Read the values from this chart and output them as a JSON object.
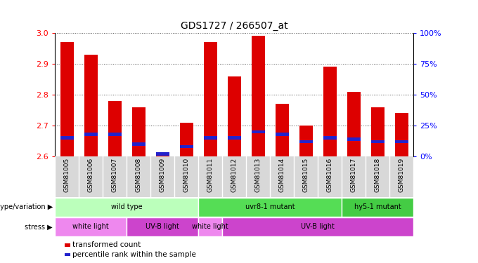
{
  "title": "GDS1727 / 266507_at",
  "samples": [
    "GSM81005",
    "GSM81006",
    "GSM81007",
    "GSM81008",
    "GSM81009",
    "GSM81010",
    "GSM81011",
    "GSM81012",
    "GSM81013",
    "GSM81014",
    "GSM81015",
    "GSM81016",
    "GSM81017",
    "GSM81018",
    "GSM81019"
  ],
  "transformed_count": [
    2.97,
    2.93,
    2.78,
    2.76,
    2.61,
    2.71,
    2.97,
    2.86,
    2.99,
    2.77,
    2.7,
    2.89,
    2.81,
    2.76,
    2.74
  ],
  "percentile_rank": [
    15,
    18,
    18,
    10,
    2,
    8,
    15,
    15,
    20,
    18,
    12,
    15,
    14,
    12,
    12
  ],
  "ylim_left": [
    2.6,
    3.0
  ],
  "ylim_right": [
    0,
    100
  ],
  "yticks_left": [
    2.6,
    2.7,
    2.8,
    2.9,
    3.0
  ],
  "yticks_right": [
    0,
    25,
    50,
    75,
    100
  ],
  "bar_color": "#dd0000",
  "pct_color": "#2222cc",
  "baseline": 2.6,
  "genotype_groups": [
    {
      "label": "wild type",
      "start": 0,
      "end": 6,
      "color": "#bbffbb"
    },
    {
      "label": "uvr8-1 mutant",
      "start": 6,
      "end": 12,
      "color": "#55dd55"
    },
    {
      "label": "hy5-1 mutant",
      "start": 12,
      "end": 15,
      "color": "#44cc44"
    }
  ],
  "stress_groups": [
    {
      "label": "white light",
      "start": 0,
      "end": 3,
      "color": "#ee88ee"
    },
    {
      "label": "UV-B light",
      "start": 3,
      "end": 6,
      "color": "#cc44cc"
    },
    {
      "label": "white light",
      "start": 6,
      "end": 7,
      "color": "#ee88ee"
    },
    {
      "label": "UV-B light",
      "start": 7,
      "end": 15,
      "color": "#cc44cc"
    }
  ],
  "legend_red": "transformed count",
  "legend_blue": "percentile rank within the sample",
  "genotype_label": "genotype/variation",
  "stress_label": "stress",
  "grid_color": "#555555",
  "tick_bg_color": "#d8d8d8"
}
